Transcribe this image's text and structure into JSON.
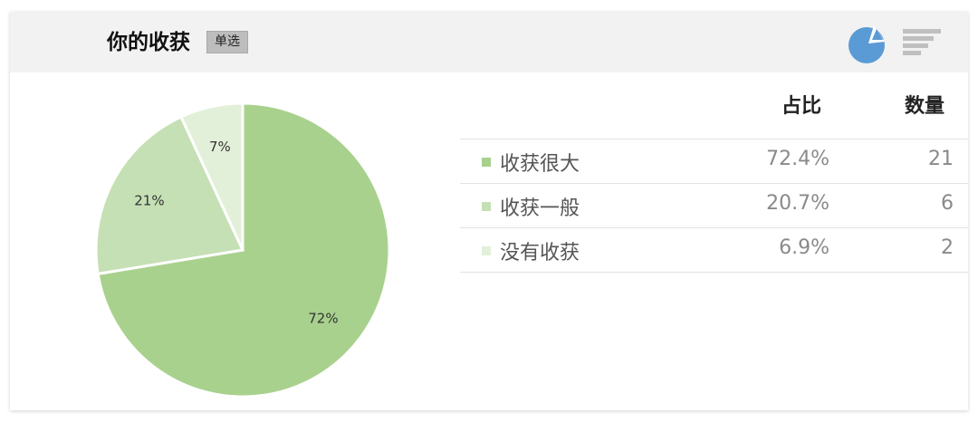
{
  "header": {
    "title": "你的收获",
    "badge": "单选"
  },
  "toolbar": {
    "pie_icon": "pie-chart-icon",
    "bar_icon": "bar-chart-icon",
    "active_color": "#5b9bd5",
    "inactive_color": "#bfbfbf"
  },
  "table": {
    "col_ratio": "占比",
    "col_count": "数量",
    "rows": [
      {
        "label": "收获很大",
        "ratio": "72.4%",
        "count": "21",
        "color": "#a9d18e"
      },
      {
        "label": "收获一般",
        "ratio": "20.7%",
        "count": "6",
        "color": "#c5e0b4"
      },
      {
        "label": "没有收获",
        "ratio": "6.9%",
        "count": "2",
        "color": "#e2f0d9"
      }
    ]
  },
  "chart_data": {
    "type": "pie",
    "categories": [
      "收获很大",
      "收获一般",
      "没有收获"
    ],
    "values": [
      72.4,
      20.7,
      6.9
    ],
    "data_labels": [
      "72%",
      "21%",
      "7%"
    ],
    "colors": [
      "#a9d18e",
      "#c5e0b4",
      "#e2f0d9"
    ],
    "start_angle_deg": 0,
    "direction": "clockwise"
  }
}
